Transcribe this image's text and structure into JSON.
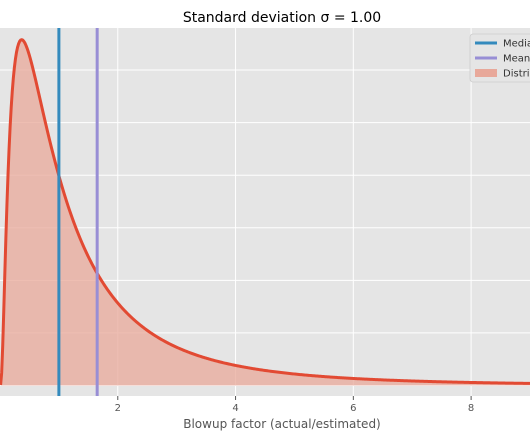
{
  "chart_data": {
    "type": "line",
    "title": "Standard deviation σ = 1.00",
    "xlabel": "Blowup factor (actual/estimated)",
    "ylabel": "",
    "xlim": [
      0,
      9.0
    ],
    "ylim": [
      -0.02,
      0.68
    ],
    "x_ticks": [
      2,
      4,
      6,
      8
    ],
    "x_tick_labels": [
      "2",
      "4",
      "6",
      "8"
    ],
    "grid": true,
    "distribution": {
      "name": "Distribution",
      "kind": "lognormal",
      "mu": 0,
      "sigma": 1.0,
      "x_range": [
        0.01,
        9.0
      ],
      "color": "#e24a33",
      "fill_color": "#e8a89a"
    },
    "vlines": [
      {
        "name": "Median",
        "x": 1.0,
        "color": "#348abd"
      },
      {
        "name": "Mean",
        "x": 1.65,
        "color": "#988ed5"
      }
    ],
    "legend": {
      "placement": "top-right",
      "entries": [
        {
          "label": "Median",
          "kind": "line",
          "color": "#348abd"
        },
        {
          "label": "Mean",
          "kind": "line",
          "color": "#988ed5"
        },
        {
          "label": "Distribution",
          "kind": "patch",
          "color": "#e8a89a"
        }
      ]
    },
    "colors": {
      "plot_background": "#e5e5e5",
      "grid": "#ffffff"
    }
  }
}
